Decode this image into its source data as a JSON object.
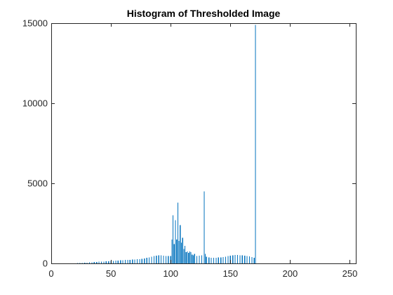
{
  "chart_data": {
    "type": "bar",
    "title": "Histogram of Thresholded Image",
    "xlabel": "",
    "ylabel": "",
    "xlim": [
      0,
      255
    ],
    "ylim": [
      0,
      15000
    ],
    "x_ticks": [
      0,
      50,
      100,
      150,
      200,
      250
    ],
    "y_ticks": [
      0,
      5000,
      10000,
      15000
    ],
    "x_tick_labels": [
      "0",
      "50",
      "100",
      "150",
      "200",
      "250"
    ],
    "y_tick_labels": [
      "0",
      "5000",
      "10000",
      "15000"
    ],
    "grid": false,
    "legend": "none",
    "box": true,
    "bar_color": "#0072BD",
    "x": [
      22,
      24,
      26,
      28,
      30,
      32,
      34,
      36,
      38,
      40,
      42,
      44,
      46,
      48,
      50,
      52,
      54,
      56,
      58,
      60,
      62,
      64,
      66,
      68,
      70,
      72,
      74,
      76,
      78,
      80,
      82,
      84,
      86,
      88,
      90,
      92,
      94,
      96,
      98,
      100,
      101,
      102,
      103,
      104,
      105,
      106,
      107,
      108,
      109,
      110,
      111,
      112,
      113,
      114,
      115,
      116,
      117,
      118,
      119,
      120,
      122,
      124,
      126,
      128,
      129,
      130,
      132,
      134,
      136,
      138,
      140,
      142,
      144,
      146,
      148,
      150,
      152,
      154,
      156,
      158,
      160,
      162,
      164,
      166,
      168,
      170,
      171
    ],
    "values": [
      20,
      25,
      30,
      40,
      50,
      60,
      70,
      80,
      90,
      100,
      110,
      120,
      130,
      140,
      150,
      160,
      170,
      180,
      190,
      200,
      210,
      220,
      230,
      240,
      250,
      260,
      270,
      290,
      310,
      340,
      380,
      420,
      460,
      480,
      500,
      500,
      490,
      470,
      460,
      450,
      1500,
      3000,
      1200,
      2700,
      1500,
      3800,
      1400,
      2400,
      1300,
      1600,
      900,
      1100,
      700,
      750,
      650,
      750,
      700,
      550,
      500,
      600,
      450,
      480,
      500,
      4500,
      600,
      420,
      380,
      360,
      340,
      350,
      370,
      380,
      400,
      420,
      450,
      480,
      500,
      520,
      520,
      510,
      500,
      480,
      450,
      430,
      400,
      350,
      14900
    ]
  }
}
